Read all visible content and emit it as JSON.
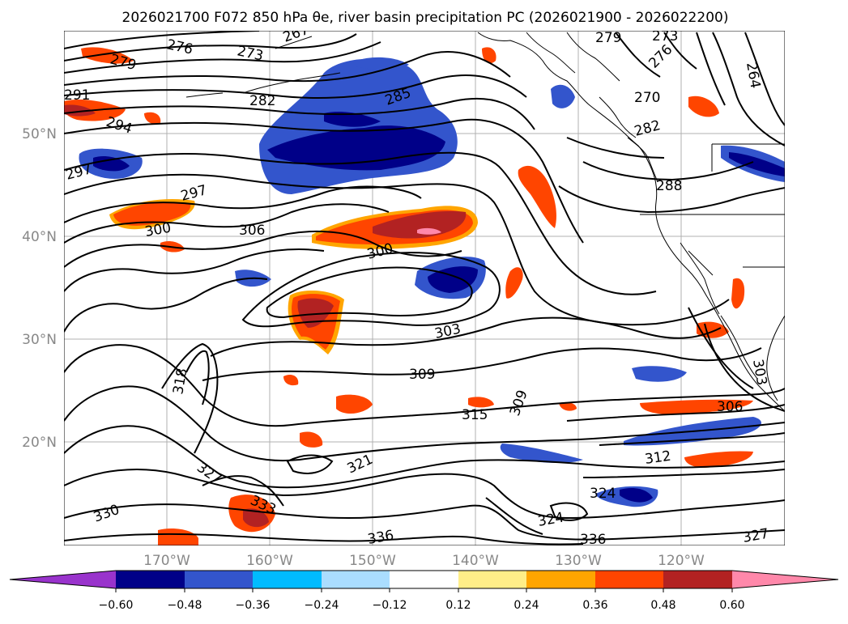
{
  "title": "2026021700 F072 850 hPa θe, river basin precipitation PC (2026021900 - 2026022200)",
  "map": {
    "lat_labels": [
      "50°N",
      "40°N",
      "30°N",
      "20°N"
    ],
    "lon_labels": [
      "170°W",
      "160°W",
      "150°W",
      "140°W",
      "130°W",
      "120°W"
    ],
    "contour_labels": [
      "276",
      "273",
      "267",
      "279",
      "291",
      "294",
      "282",
      "285",
      "297",
      "297",
      "300",
      "306",
      "300",
      "303",
      "309",
      "315",
      "309",
      "318",
      "321",
      "327",
      "330",
      "333",
      "336",
      "324",
      "324",
      "336",
      "327",
      "312",
      "306",
      "288",
      "270",
      "282",
      "264",
      "276",
      "273",
      "279",
      "303"
    ]
  },
  "colorbar": {
    "ticks": [
      "−0.60",
      "−0.48",
      "−0.36",
      "−0.24",
      "−0.12",
      "0.12",
      "0.24",
      "0.36",
      "0.48",
      "0.60"
    ],
    "colors": [
      "#9933cc",
      "#000088",
      "#3355cc",
      "#00bbff",
      "#aaddff",
      "#ffffff",
      "#ffee88",
      "#ffa500",
      "#ff4500",
      "#b22222",
      "#ff88aa"
    ]
  }
}
